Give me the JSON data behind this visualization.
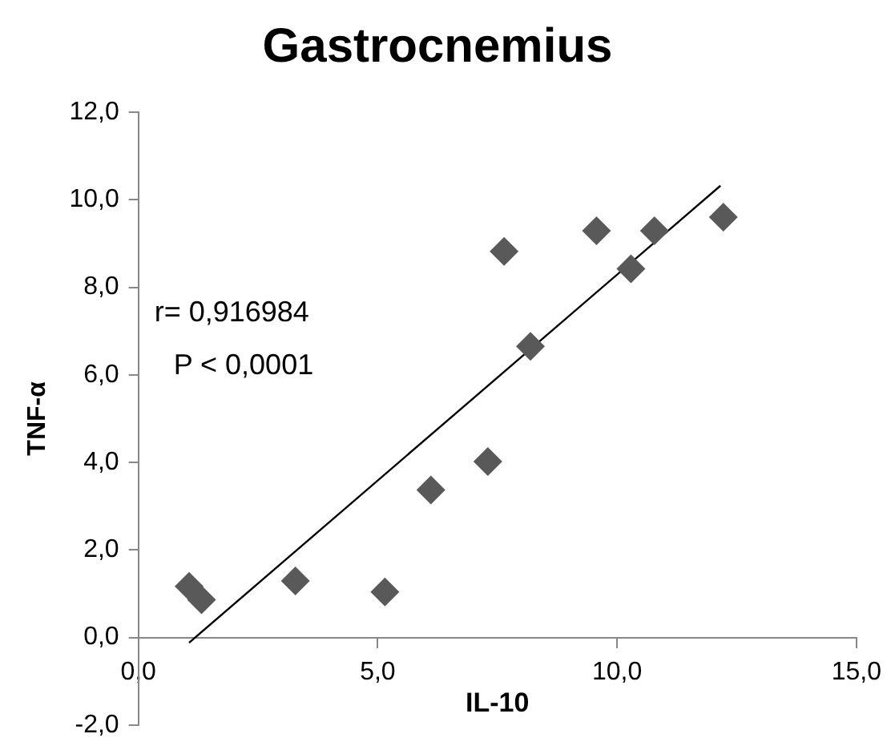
{
  "chart_data": {
    "type": "scatter",
    "title": "Gastrocnemius",
    "xlabel": "IL-10",
    "ylabel": "TNF-α",
    "x": [
      1.06,
      1.32,
      3.28,
      5.15,
      6.11,
      7.3,
      7.64,
      8.19,
      9.57,
      10.29,
      10.78,
      12.22
    ],
    "series": [
      {
        "color": "#595959",
        "marker": "diamond",
        "values": [
          1.17,
          0.86,
          1.29,
          1.04,
          3.37,
          4.02,
          8.82,
          6.65,
          9.29,
          8.42,
          9.29,
          9.6
        ]
      },
      {
        "type": "line",
        "color": "#000000",
        "x": [
          1.06,
          12.16
        ],
        "values": [
          -0.12,
          10.32
        ],
        "marker": "none"
      }
    ],
    "xlim": [
      0,
      15
    ],
    "xticks": [
      {
        "value": 0,
        "label": "0,0"
      },
      {
        "value": 5,
        "label": "5,0"
      },
      {
        "value": 10,
        "label": "10,0"
      },
      {
        "value": 15,
        "label": "15,0"
      }
    ],
    "ylim": [
      -2,
      12
    ],
    "yticks": [
      {
        "value": -2,
        "label": "-2,0"
      },
      {
        "value": 0,
        "label": "0,0"
      },
      {
        "value": 2,
        "label": "2,0"
      },
      {
        "value": 4,
        "label": "4,0"
      },
      {
        "value": 6,
        "label": "6,0"
      },
      {
        "value": 8,
        "label": "8,0"
      },
      {
        "value": 10,
        "label": "10,0"
      },
      {
        "value": 12,
        "label": "12,0"
      }
    ],
    "annotations": [
      "r= 0,916984",
      "P < 0,0001"
    ],
    "grid": false,
    "legend": false
  }
}
